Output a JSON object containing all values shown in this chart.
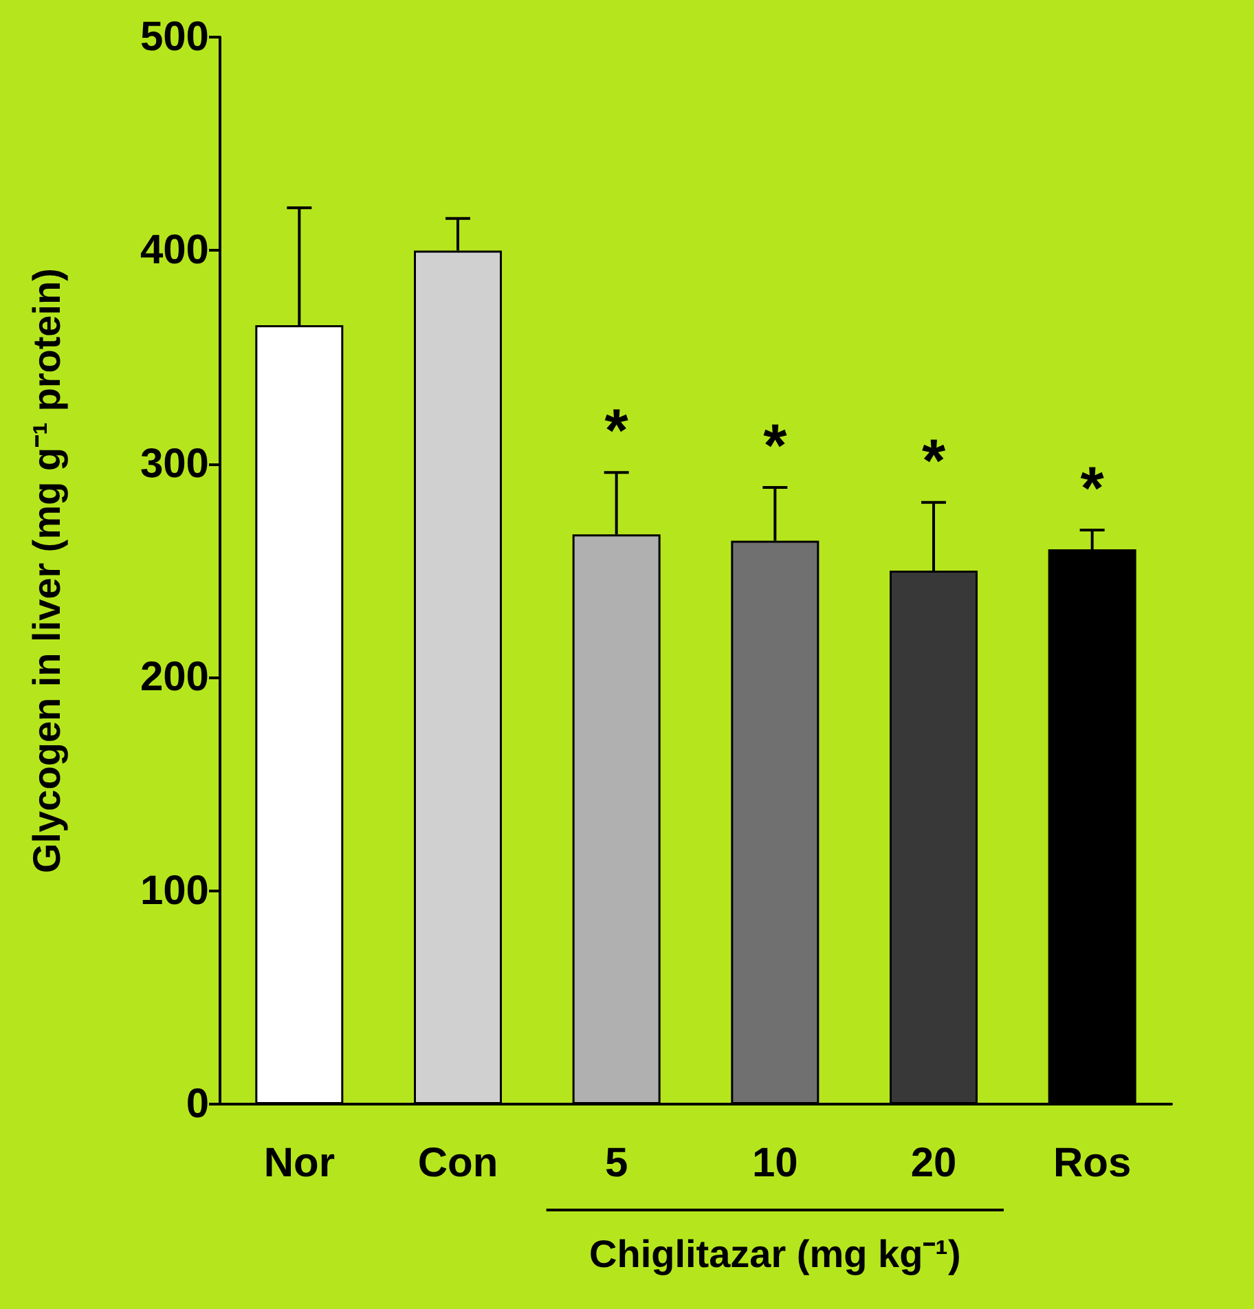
{
  "chart_data": {
    "type": "bar",
    "ylabel": "Glycogen in liver (mg g⁻¹ protein)",
    "categories": [
      "Nor",
      "Con",
      "5",
      "10",
      "20",
      "Ros"
    ],
    "values": [
      365,
      400,
      267,
      264,
      250,
      260
    ],
    "colors": [
      "#ffffff",
      "#d0d0d0",
      "#b0b0b0",
      "#707070",
      "#383838",
      "#000000"
    ],
    "errors": [
      [
        365,
        420
      ],
      [
        400,
        415
      ],
      [
        267,
        296
      ],
      [
        264,
        289
      ],
      [
        250,
        282
      ],
      [
        260,
        269
      ]
    ],
    "ylim": [
      0,
      500
    ],
    "yticks": [
      0,
      100,
      200,
      300,
      400,
      500
    ],
    "grid": false,
    "annotations": [
      {
        "text": "*",
        "x": "5",
        "y": 296
      },
      {
        "text": "*",
        "x": "10",
        "y": 289
      },
      {
        "text": "*",
        "x": "20",
        "y": 282
      },
      {
        "text": "*",
        "x": "Ros",
        "y": 269
      },
      "Chiglitazar (mg kg⁻¹)"
    ]
  }
}
